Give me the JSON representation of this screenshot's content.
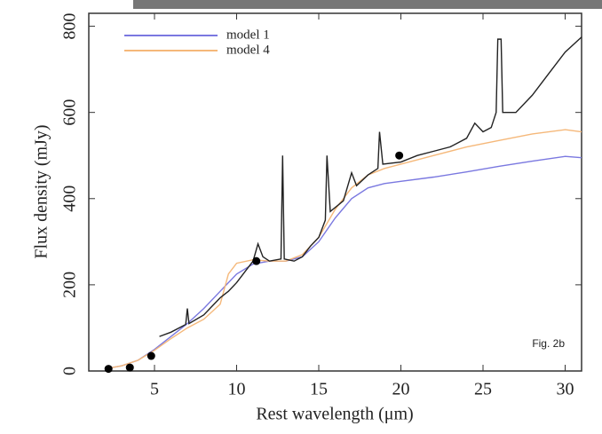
{
  "chart_data": {
    "type": "line",
    "xlabel": "Rest wavelength (μm)",
    "ylabel": "Flux density (mJy)",
    "annotation": "Fig. 2b",
    "xlim": [
      1,
      31
    ],
    "ylim": [
      0,
      830
    ],
    "xticks": [
      5,
      10,
      15,
      20,
      25,
      30
    ],
    "yticks": [
      0,
      200,
      400,
      600,
      800
    ],
    "legend": "upper left",
    "series": [
      {
        "name": "model 1",
        "color": "#7a78e0",
        "x": [
          2,
          3,
          4,
          5,
          6,
          7,
          8,
          9,
          10,
          11,
          12,
          13,
          14,
          15,
          16,
          17,
          18,
          19,
          20,
          22,
          24,
          26,
          28,
          30,
          31
        ],
        "values": [
          5,
          12,
          25,
          50,
          80,
          110,
          145,
          185,
          225,
          248,
          255,
          255,
          265,
          300,
          355,
          400,
          425,
          435,
          440,
          450,
          462,
          475,
          487,
          498,
          495
        ]
      },
      {
        "name": "model 4",
        "color": "#f5b87a",
        "x": [
          2,
          3,
          4,
          5,
          6,
          7,
          8,
          9,
          9.5,
          10,
          11,
          12,
          13,
          14,
          15,
          16,
          17,
          18,
          19,
          20,
          22,
          24,
          26,
          28,
          30,
          31
        ],
        "values": [
          5,
          12,
          25,
          48,
          75,
          100,
          120,
          155,
          225,
          250,
          258,
          255,
          255,
          270,
          310,
          375,
          425,
          455,
          470,
          480,
          500,
          520,
          535,
          550,
          560,
          555
        ]
      },
      {
        "color": "#222222",
        "x": [
          5.3,
          6,
          6.9,
          7,
          7.1,
          8,
          8.5,
          9,
          9.5,
          10,
          10.5,
          11,
          11.3,
          11.6,
          12,
          12.7,
          12.8,
          12.9,
          13.5,
          14,
          14.5,
          15,
          15.4,
          15.5,
          15.7,
          16.5,
          17,
          17.3,
          18,
          18.6,
          18.7,
          18.9,
          20,
          21,
          22,
          23,
          24,
          24.5,
          25,
          25.5,
          25.8,
          25.9,
          26.1,
          26.2,
          27,
          28,
          29,
          30,
          31
        ],
        "values": [
          80,
          90,
          108,
          145,
          110,
          130,
          150,
          170,
          185,
          205,
          230,
          255,
          295,
          265,
          255,
          260,
          500,
          260,
          255,
          265,
          290,
          310,
          350,
          500,
          370,
          395,
          460,
          430,
          455,
          470,
          555,
          480,
          485,
          500,
          510,
          520,
          540,
          575,
          555,
          565,
          600,
          770,
          770,
          600,
          600,
          640,
          690,
          740,
          775
        ]
      }
    ],
    "points": {
      "color": "#000000",
      "x": [
        2.2,
        3.5,
        4.8,
        11.2,
        19.9
      ],
      "values": [
        5,
        8,
        35,
        255,
        500
      ]
    }
  }
}
